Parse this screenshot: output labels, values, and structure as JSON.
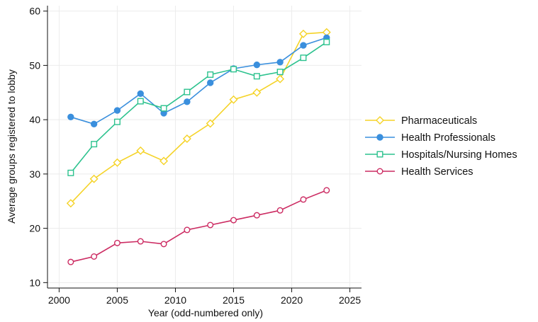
{
  "chart_data": {
    "type": "line",
    "xlabel": "Year (odd-numbered only)",
    "ylabel": "Average groups registered to lobby",
    "xlim": [
      1999,
      2026
    ],
    "ylim": [
      9,
      61
    ],
    "xticks": [
      2000,
      2005,
      2010,
      2015,
      2020,
      2025
    ],
    "yticks": [
      10,
      20,
      30,
      40,
      50,
      60
    ],
    "grid": true,
    "legend_position": "right",
    "x": [
      2001,
      2003,
      2005,
      2007,
      2009,
      2011,
      2013,
      2015,
      2017,
      2019,
      2021,
      2023
    ],
    "series": [
      {
        "name": "Pharmaceuticals",
        "color": "#f5d327",
        "marker": "diamond",
        "values": [
          24.6,
          29.1,
          32.1,
          34.3,
          32.4,
          36.5,
          39.3,
          43.7,
          45.0,
          47.5,
          55.8,
          56.1
        ]
      },
      {
        "name": "Health Professionals",
        "color": "#3a8fdd",
        "marker": "circle-filled",
        "values": [
          40.5,
          39.2,
          41.7,
          44.8,
          41.2,
          43.3,
          46.8,
          49.4,
          50.1,
          50.6,
          53.7,
          55.1
        ]
      },
      {
        "name": "Hospitals/Nursing Homes",
        "color": "#2cc28e",
        "marker": "square",
        "values": [
          30.2,
          35.5,
          39.6,
          43.4,
          42.1,
          45.1,
          48.3,
          49.3,
          48.0,
          48.8,
          51.4,
          54.3
        ]
      },
      {
        "name": "Health Services",
        "color": "#cc2b62",
        "marker": "circle",
        "values": [
          13.8,
          14.8,
          17.3,
          17.6,
          17.1,
          19.7,
          20.6,
          21.5,
          22.4,
          23.3,
          25.3,
          27.0
        ]
      }
    ]
  }
}
